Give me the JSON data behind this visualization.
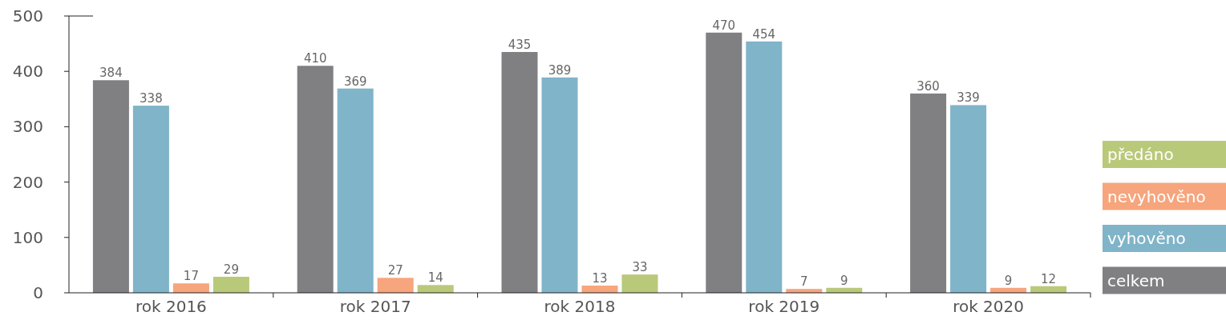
{
  "chart_data": {
    "type": "bar",
    "categories": [
      "rok 2016",
      "rok 2017",
      "rok 2018",
      "rok 2019",
      "rok 2020"
    ],
    "series": [
      {
        "name": "celkem",
        "color": "#808083",
        "values": [
          384,
          410,
          435,
          470,
          360
        ]
      },
      {
        "name": "vyhověno",
        "color": "#80b4c8",
        "values": [
          338,
          369,
          389,
          454,
          339
        ]
      },
      {
        "name": "nevyhověno",
        "color": "#f6a57d",
        "values": [
          17,
          27,
          13,
          7,
          9
        ]
      },
      {
        "name": "předáno",
        "color": "#b9c97a",
        "values": [
          29,
          14,
          33,
          9,
          12
        ]
      }
    ],
    "ylim": [
      0,
      500
    ],
    "yticks": [
      0,
      100,
      200,
      300,
      400,
      500
    ],
    "data_labels": true,
    "legend": "right",
    "grid": false
  }
}
